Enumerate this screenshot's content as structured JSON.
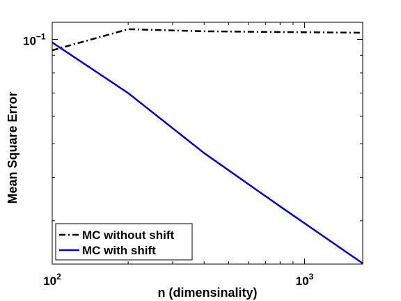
{
  "chart_data": {
    "type": "line",
    "xlabel": "n (dimensinality)",
    "ylabel": "Mean Square Error",
    "xscale": "log",
    "yscale": "log",
    "xlim": [
      100,
      1700
    ],
    "ylim": [
      0.0225,
      0.112
    ],
    "x_ticks": [
      {
        "value": 100,
        "base": "10",
        "exp": "2"
      },
      {
        "value": 1000,
        "base": "10",
        "exp": "3"
      }
    ],
    "y_ticks": [
      {
        "value": 0.1,
        "base": "10",
        "exp": "−1"
      }
    ],
    "legend": {
      "location": "bottom-left"
    },
    "series": [
      {
        "name": "MC without shift",
        "color": "#000000",
        "style": "dash-dot",
        "x": [
          100,
          200,
          400,
          800,
          1700
        ],
        "y": [
          0.093,
          0.107,
          0.1055,
          0.105,
          0.1045
        ]
      },
      {
        "name": "MC with shift",
        "color": "#0000dd",
        "style": "solid",
        "x": [
          100,
          200,
          400,
          800,
          1700
        ],
        "y": [
          0.098,
          0.07,
          0.047,
          0.033,
          0.0226
        ]
      }
    ]
  }
}
